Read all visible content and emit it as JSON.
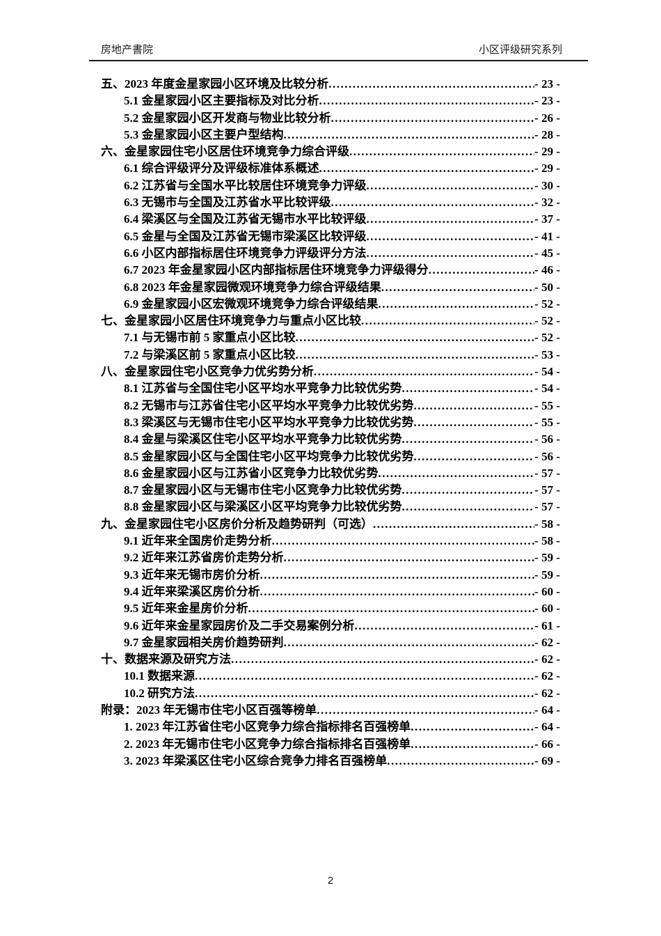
{
  "header": {
    "left": "房地产書院",
    "right": "小区评级研究系列"
  },
  "toc": {
    "entries": [
      {
        "level": 1,
        "label": "五、2023 年度金星家园小区环境及比较分析",
        "page": "- 23 -"
      },
      {
        "level": 2,
        "label": "5.1 金星家园小区主要指标及对比分析",
        "page": "- 23 -"
      },
      {
        "level": 2,
        "label": "5.2 金星家园小区开发商与物业比较分析",
        "page": "- 26 -"
      },
      {
        "level": 2,
        "label": "5.3 金星家园小区主要户型结构",
        "page": "- 28 -"
      },
      {
        "level": 1,
        "label": "六、金星家园住宅小区居住环境竞争力综合评级",
        "page": "- 29 -"
      },
      {
        "level": 2,
        "label": "6.1 综合评级评分及评级标准体系概述",
        "page": "- 29 -"
      },
      {
        "level": 2,
        "label": "6.2 江苏省与全国水平比较居住环境竞争力评级",
        "page": "- 30 -"
      },
      {
        "level": 2,
        "label": "6.3 无锡市与全国及江苏省水平比较评级",
        "page": "- 32 -"
      },
      {
        "level": 2,
        "label": "6.4 梁溪区与全国及江苏省无锡市水平比较评级",
        "page": "- 37 -"
      },
      {
        "level": 2,
        "label": "6.5 金星与全国及江苏省无锡市梁溪区比较评级",
        "page": "- 41 -"
      },
      {
        "level": 2,
        "label": "6.6 小区内部指标居住环境竞争力评级评分方法",
        "page": "- 45 -"
      },
      {
        "level": 2,
        "label": "6.7 2023 年金星家园小区内部指标居住环境竞争力评级得分",
        "page": "- 46 -"
      },
      {
        "level": 2,
        "label": "6.8 2023 年金星家园微观环境竞争力综合评级结果",
        "page": "- 50 -"
      },
      {
        "level": 2,
        "label": "6.9 金星家园小区宏微观环境竞争力综合评级结果",
        "page": "- 52 -"
      },
      {
        "level": 1,
        "label": "七、金星家园小区居住环境竞争力与重点小区比较",
        "page": "- 52 -"
      },
      {
        "level": 2,
        "label": "7.1 与无锡市前 5 家重点小区比较",
        "page": "- 52 -"
      },
      {
        "level": 2,
        "label": "7.2 与梁溪区前 5 家重点小区比较",
        "page": "- 53 -"
      },
      {
        "level": 1,
        "label": "八、金星家园住宅小区竞争力优劣势分析",
        "page": "- 54 -"
      },
      {
        "level": 2,
        "label": "8.1 江苏省与全国住宅小区平均水平竞争力比较优劣势",
        "page": "- 54 -"
      },
      {
        "level": 2,
        "label": "8.2 无锡市与江苏省住宅小区平均水平竞争力比较优劣势",
        "page": "- 55 -"
      },
      {
        "level": 2,
        "label": "8.3 梁溪区与无锡市住宅小区平均水平竞争力比较优劣势",
        "page": "- 55 -"
      },
      {
        "level": 2,
        "label": "8.4 金星与梁溪区住宅小区平均水平竞争力比较优劣势",
        "page": "- 56 -"
      },
      {
        "level": 2,
        "label": "8.5 金星家园小区与全国住宅小区平均竞争力比较优劣势",
        "page": "- 56 -"
      },
      {
        "level": 2,
        "label": "8.6 金星家园小区与江苏省小区竞争力比较优劣势",
        "page": "- 57 -"
      },
      {
        "level": 2,
        "label": "8.7 金星家园小区与无锡市住宅小区竞争力比较优劣势",
        "page": "- 57 -"
      },
      {
        "level": 2,
        "label": "8.8 金星家园小区与梁溪区小区平均竞争力比较优劣势",
        "page": "- 57 -"
      },
      {
        "level": 1,
        "label": "九、金星家园住宅小区房价分析及趋势研判（可选）",
        "page": "- 58 -"
      },
      {
        "level": 2,
        "label": "9.1 近年来全国房价走势分析",
        "page": "- 58 -"
      },
      {
        "level": 2,
        "label": "9.2 近年来江苏省房价走势分析",
        "page": "- 59 -"
      },
      {
        "level": 2,
        "label": "9.3 近年来无锡市房价分析",
        "page": "- 59 -"
      },
      {
        "level": 2,
        "label": "9.4 近年来梁溪区房价分析",
        "page": "- 60 -"
      },
      {
        "level": 2,
        "label": "9.5 近年来金星房价分析",
        "page": "- 60 -"
      },
      {
        "level": 2,
        "label": "9.6 近年来金星家园房价及二手交易案例分析",
        "page": "- 61 -"
      },
      {
        "level": 2,
        "label": "9.7 金星家园相关房价趋势研判",
        "page": "- 62 -"
      },
      {
        "level": 1,
        "label": "十、数据来源及研究方法",
        "page": "- 62 -"
      },
      {
        "level": 2,
        "label": "10.1 数据来源",
        "page": "- 62 -"
      },
      {
        "level": 2,
        "label": "10.2 研究方法",
        "page": "- 62 -"
      },
      {
        "level": 1,
        "label": "附录：2023 年无锡市住宅小区百强等榜单",
        "page": "- 64 -"
      },
      {
        "level": 2,
        "label": "1.  2023 年江苏省住宅小区竞争力综合指标排名百强榜单",
        "page": "- 64 -"
      },
      {
        "level": 2,
        "label": "2.  2023 年无锡市住宅小区竞争力综合指标排名百强榜单",
        "page": "- 66 -"
      },
      {
        "level": 2,
        "label": "3.  2023 年梁溪区住宅小区综合竞争力排名百强榜单",
        "page": "- 69 -"
      }
    ]
  },
  "footer": {
    "page_number": "2"
  }
}
